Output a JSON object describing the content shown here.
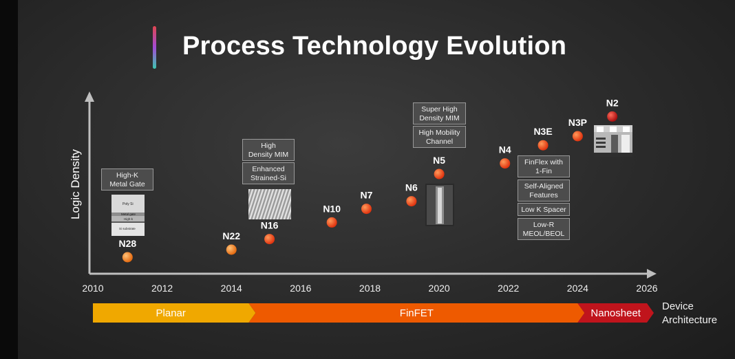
{
  "title": "Process Technology Evolution",
  "chart_data": {
    "type": "scatter",
    "title": "Process Technology Evolution",
    "ylabel": "Logic Density",
    "xlabel": "",
    "xlim": [
      2010,
      2026
    ],
    "x_ticks": [
      "2010",
      "2012",
      "2014",
      "2016",
      "2018",
      "2020",
      "2022",
      "2024",
      "2026"
    ],
    "points": [
      {
        "label": "N28",
        "x": 2011.0,
        "y": 0.05,
        "color": "#f0a13c"
      },
      {
        "label": "N22",
        "x": 2014.0,
        "y": 0.1,
        "color": "#f0a13c"
      },
      {
        "label": "N16",
        "x": 2015.1,
        "y": 0.17,
        "color": "#e8541f"
      },
      {
        "label": "N10",
        "x": 2016.9,
        "y": 0.28,
        "color": "#e8541f"
      },
      {
        "label": "N7",
        "x": 2017.9,
        "y": 0.37,
        "color": "#e8541f"
      },
      {
        "label": "N6",
        "x": 2019.2,
        "y": 0.42,
        "color": "#e8541f"
      },
      {
        "label": "N5",
        "x": 2020.0,
        "y": 0.6,
        "color": "#e8541f"
      },
      {
        "label": "N4",
        "x": 2021.9,
        "y": 0.67,
        "color": "#e8541f"
      },
      {
        "label": "N3E",
        "x": 2023.0,
        "y": 0.79,
        "color": "#e8541f"
      },
      {
        "label": "N3P",
        "x": 2024.0,
        "y": 0.85,
        "color": "#e8541f"
      },
      {
        "label": "N2",
        "x": 2025.0,
        "y": 0.98,
        "color": "#c81e1e"
      }
    ],
    "annotations": [
      {
        "id": "a1",
        "text": "High-K\nMetal Gate"
      },
      {
        "id": "a2",
        "text": "High\nDensity MIM"
      },
      {
        "id": "a3",
        "text": "Enhanced\nStrained-Si"
      },
      {
        "id": "a4",
        "text": "Super High\nDensity MIM"
      },
      {
        "id": "a5",
        "text": "High Mobility\nChannel"
      },
      {
        "id": "a6",
        "text": "FinFlex with\n1-Fin"
      },
      {
        "id": "a7",
        "text": "Self-Aligned\nFeatures"
      },
      {
        "id": "a8",
        "text": "Low K Spacer"
      },
      {
        "id": "a9",
        "text": "Low-R\nMEOL/BEOL"
      }
    ],
    "architecture": [
      {
        "name": "Planar",
        "start": 2010,
        "end": 2014.5,
        "color": "#f0a800"
      },
      {
        "name": "FinFET",
        "start": 2014.5,
        "end": 2024,
        "color": "#ee5a00"
      },
      {
        "name": "Nanosheet",
        "start": 2024,
        "end": 2026,
        "color": "#c0141c"
      }
    ],
    "architecture_label": "Device\nArchitecture"
  },
  "thumb_text": {
    "poly": "Poly Si",
    "metal": "Metal gate",
    "highk": "High-k",
    "sub": "Si substrate"
  }
}
